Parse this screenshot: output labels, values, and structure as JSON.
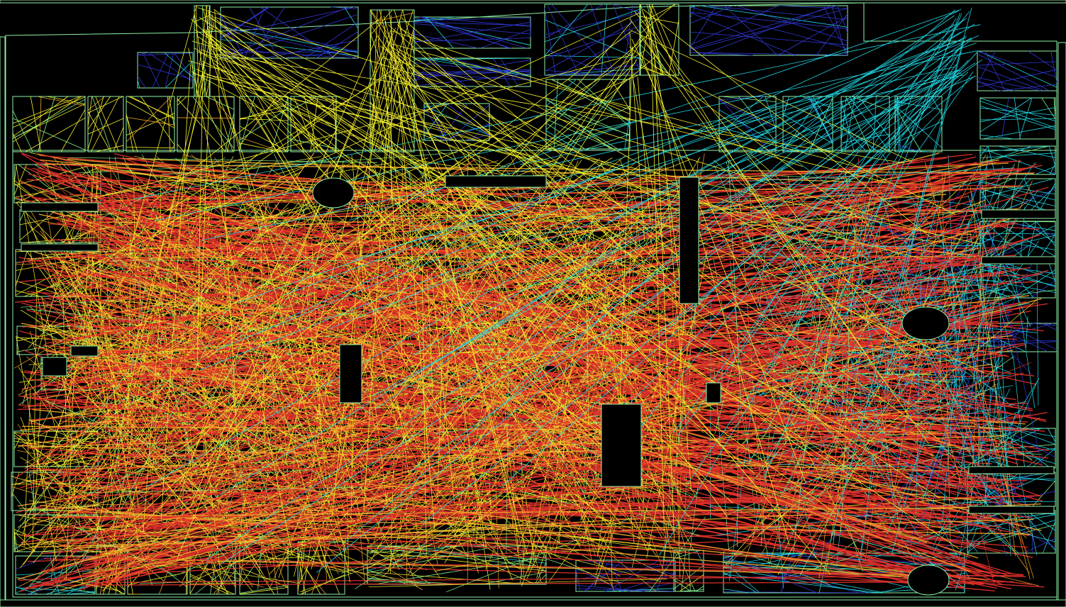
{
  "diagram": {
    "kind": "floor-plan visibility graph",
    "background_color": "#000000",
    "outline_color": "#8ff0a4",
    "colormap": [
      "#3137d6",
      "#1fd6e3",
      "#7ff08a",
      "#f1ee2a",
      "#f0a52a",
      "#e0302a"
    ]
  }
}
